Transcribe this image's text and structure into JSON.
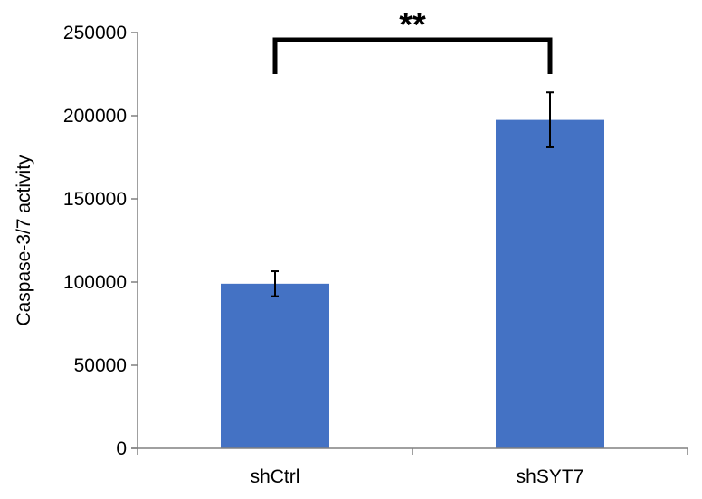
{
  "chart_data": {
    "type": "bar",
    "categories": [
      "shCtrl",
      "shSYT7"
    ],
    "values": [
      99000,
      197500
    ],
    "error": [
      7500,
      16500
    ],
    "ylabel": "Caspase-3/7 activity",
    "ylim": [
      0,
      250000
    ],
    "yticks": [
      0,
      50000,
      100000,
      150000,
      200000,
      250000
    ],
    "ytick_labels": [
      "0",
      "50000",
      "100000",
      "150000",
      "200000",
      "250000"
    ],
    "bar_color": "#4472C4",
    "grid": false,
    "significance": {
      "between": [
        "shCtrl",
        "shSYT7"
      ],
      "label": "**"
    }
  }
}
